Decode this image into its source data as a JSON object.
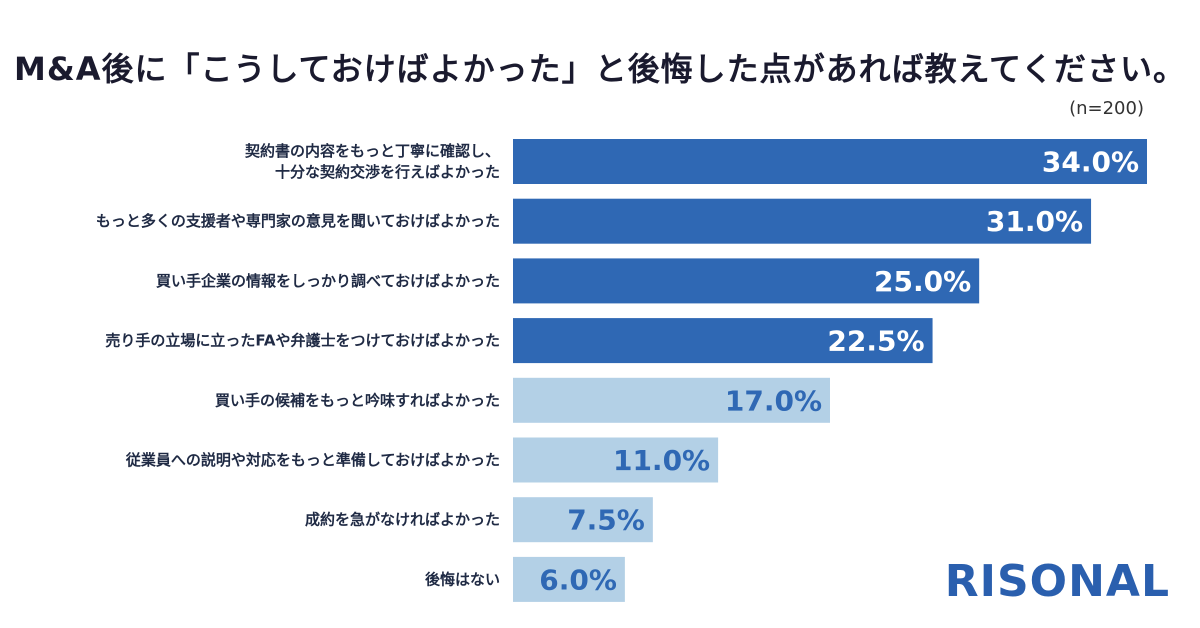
{
  "chart_data": {
    "type": "bar",
    "orientation": "horizontal",
    "title": "M&A後に「こうしておけばよかった」と後悔した点があれば教えてください。",
    "sample_size": "(n=200)",
    "unit": "%",
    "xlim": [
      0,
      34
    ],
    "categories": [
      [
        "契約書の内容をもっと丁寧に確認し、",
        "十分な契約交渉を行えばよかった"
      ],
      [
        "もっと多くの支援者や専門家の意見を聞いておけばよかった"
      ],
      [
        "買い手企業の情報をしっかり調べておけばよかった"
      ],
      [
        "売り手の立場に立ったFAや弁護士をつけておけばよかった"
      ],
      [
        "買い手の候補をもっと吟味すればよかった"
      ],
      [
        "従業員への説明や対応をもっと準備しておけばよかった"
      ],
      [
        "成約を急がなければよかった"
      ],
      [
        "後悔はない"
      ]
    ],
    "values": [
      34.0,
      31.0,
      25.0,
      22.5,
      17.0,
      11.0,
      7.5,
      6.0
    ],
    "value_labels": [
      "34.0%",
      "31.0%",
      "25.0%",
      "22.5%",
      "17.0%",
      "11.0%",
      "7.5%",
      "6.0%"
    ],
    "highlight_count": 4,
    "colors": {
      "highlight_bar": "#2f68b4",
      "highlight_text": "#ffffff",
      "normal_bar": "#b3d0e6",
      "normal_text": "#2f68b4"
    }
  },
  "brand": {
    "logo": "RISONAL"
  }
}
